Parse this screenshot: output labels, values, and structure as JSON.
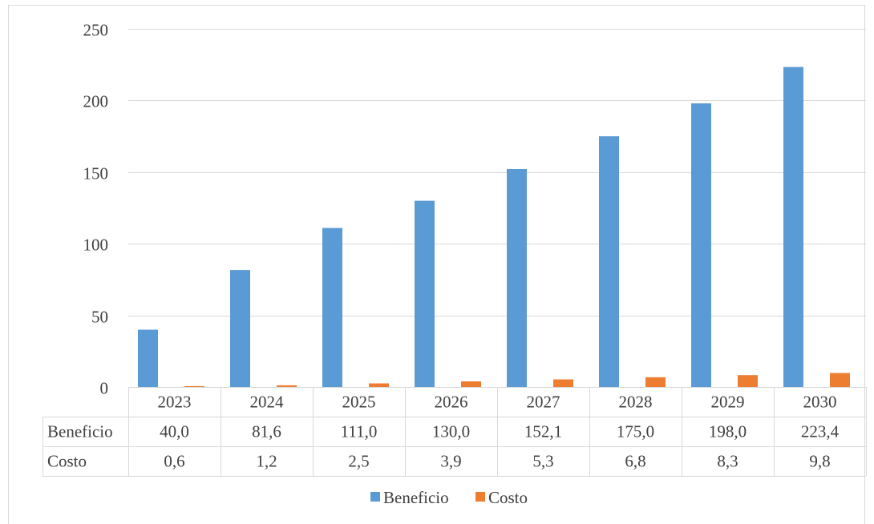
{
  "chart_data": {
    "type": "bar",
    "categories": [
      "2023",
      "2024",
      "2025",
      "2026",
      "2027",
      "2028",
      "2029",
      "2030"
    ],
    "series": [
      {
        "name": "Beneficio",
        "values": [
          40.0,
          81.6,
          111.0,
          130.0,
          152.1,
          175.0,
          198.0,
          223.4
        ],
        "labels": [
          "40,0",
          "81,6",
          "111,0",
          "130,0",
          "152,1",
          "175,0",
          "198,0",
          "223,4"
        ],
        "color": "#5b9bd5"
      },
      {
        "name": "Costo",
        "values": [
          0.6,
          1.2,
          2.5,
          3.9,
          5.3,
          6.8,
          8.3,
          9.8
        ],
        "labels": [
          "0,6",
          "1,2",
          "2,5",
          "3,9",
          "5,3",
          "6,8",
          "8,3",
          "9,8"
        ],
        "color": "#ed7d31"
      }
    ],
    "yticks": [
      0,
      50,
      100,
      150,
      200,
      250
    ],
    "ylim": [
      0,
      250
    ],
    "grid": true,
    "legend": "bottom",
    "data_table": true
  }
}
